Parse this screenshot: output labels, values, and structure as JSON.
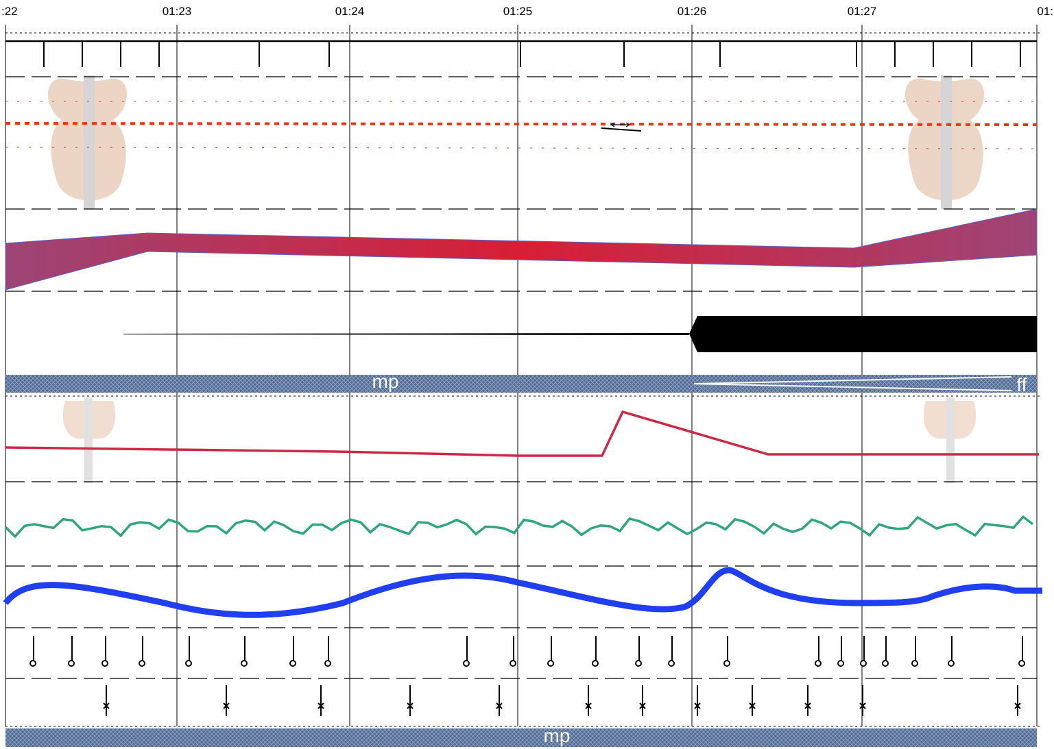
{
  "time_labels": [
    ":22",
    "01:23",
    "01:24",
    "01:25",
    "01:26",
    "01:27",
    "01:"
  ],
  "dynamics": {
    "upper_band": "mp",
    "upper_band_end": "ff",
    "lower_band": "mp"
  }
}
